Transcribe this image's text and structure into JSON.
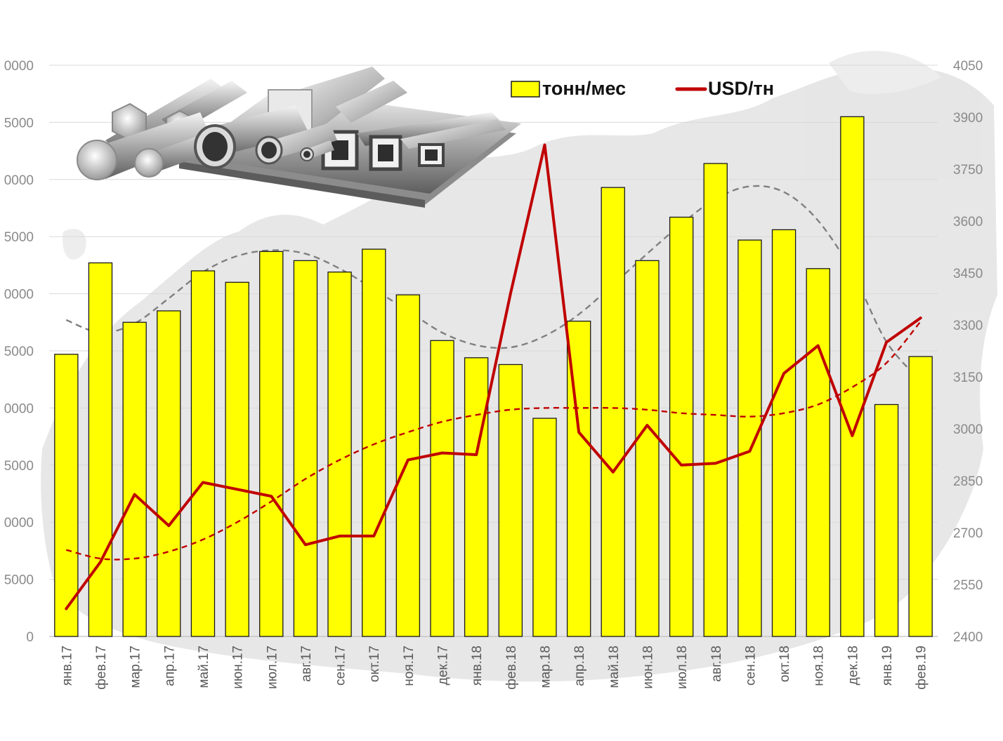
{
  "chart_data": {
    "type": "bar+line",
    "categories": [
      "янв.17",
      "фев.17",
      "мар.17",
      "апр.17",
      "май.17",
      "июн.17",
      "июл.17",
      "авг.17",
      "сен.17",
      "окт.17",
      "ноя.17",
      "дек.17",
      "янв.18",
      "фев.18",
      "мар.18",
      "апр.18",
      "май.18",
      "июн.18",
      "июл.18",
      "авг.18",
      "сен.18",
      "окт.18",
      "ноя.18",
      "дек.18",
      "янв.19",
      "фев.19"
    ],
    "series": [
      {
        "name": "тонн/мес",
        "kind": "bar",
        "axis": "left",
        "color": "#ffff00",
        "values": [
          24700,
          32700,
          27500,
          28500,
          32000,
          31000,
          33700,
          32900,
          31900,
          33900,
          29900,
          25900,
          24400,
          23800,
          19100,
          27600,
          39300,
          32900,
          36700,
          41400,
          34700,
          35600,
          32200,
          45500,
          20300,
          24500
        ]
      },
      {
        "name": "USD/тн",
        "kind": "line",
        "axis": "right",
        "color": "#c00000",
        "values": [
          2480,
          2615,
          2810,
          2720,
          2845,
          2825,
          2805,
          2665,
          2690,
          2690,
          2910,
          2930,
          2925,
          3390,
          3820,
          2990,
          2875,
          3010,
          2895,
          2900,
          2935,
          3160,
          3240,
          2980,
          3250,
          3320
        ]
      }
    ],
    "trendlines": [
      {
        "of": "тонн/мес",
        "style": "dashed",
        "color": "#808080",
        "values": [
          27700,
          26600,
          27400,
          29600,
          31900,
          33300,
          33800,
          33500,
          32200,
          30400,
          28500,
          26600,
          25500,
          25300,
          26300,
          28200,
          30800,
          33500,
          36100,
          38300,
          39400,
          38900,
          36400,
          31900,
          25800,
          22400
        ]
      },
      {
        "of": "USD/тн",
        "style": "dashed",
        "color": "#c00000",
        "values": [
          2650,
          2625,
          2625,
          2645,
          2680,
          2730,
          2790,
          2855,
          2910,
          2955,
          2990,
          3020,
          3040,
          3055,
          3060,
          3060,
          3060,
          3055,
          3045,
          3040,
          3035,
          3045,
          3070,
          3120,
          3190,
          3310
        ]
      }
    ],
    "left_axis": {
      "ylim": [
        0,
        50000
      ],
      "ticks": [
        "0",
        "5000",
        "0000",
        "5000",
        "0000",
        "5000",
        "0000",
        "5000",
        "0000",
        "5000",
        "0000"
      ]
    },
    "right_axis": {
      "ylim": [
        2400,
        4050
      ],
      "ticks": [
        "2400",
        "2550",
        "2700",
        "2850",
        "3000",
        "3150",
        "3300",
        "3450",
        "3600",
        "3750",
        "3900",
        "4050"
      ]
    },
    "legend": {
      "position": "top-right",
      "items": [
        {
          "label": "тонн/мес",
          "color": "#ffff00",
          "marker": "box"
        },
        {
          "label": "USD/тн",
          "color": "#c00000",
          "marker": "line"
        }
      ]
    },
    "grid": true,
    "title": "",
    "xlabel": "",
    "ylabel": ""
  },
  "colors": {
    "bar_fill": "#ffff00",
    "bar_stroke": "#1a1a1a",
    "line": "#c00000",
    "trend_bar": "#808080",
    "grid": "#d9d9d9",
    "axis_text": "#8a8a8a",
    "category_text": "#595959"
  },
  "decor": {
    "background": "grey-map-silhouette",
    "illustration": "metal-profiles-pipes-bars-icon"
  }
}
